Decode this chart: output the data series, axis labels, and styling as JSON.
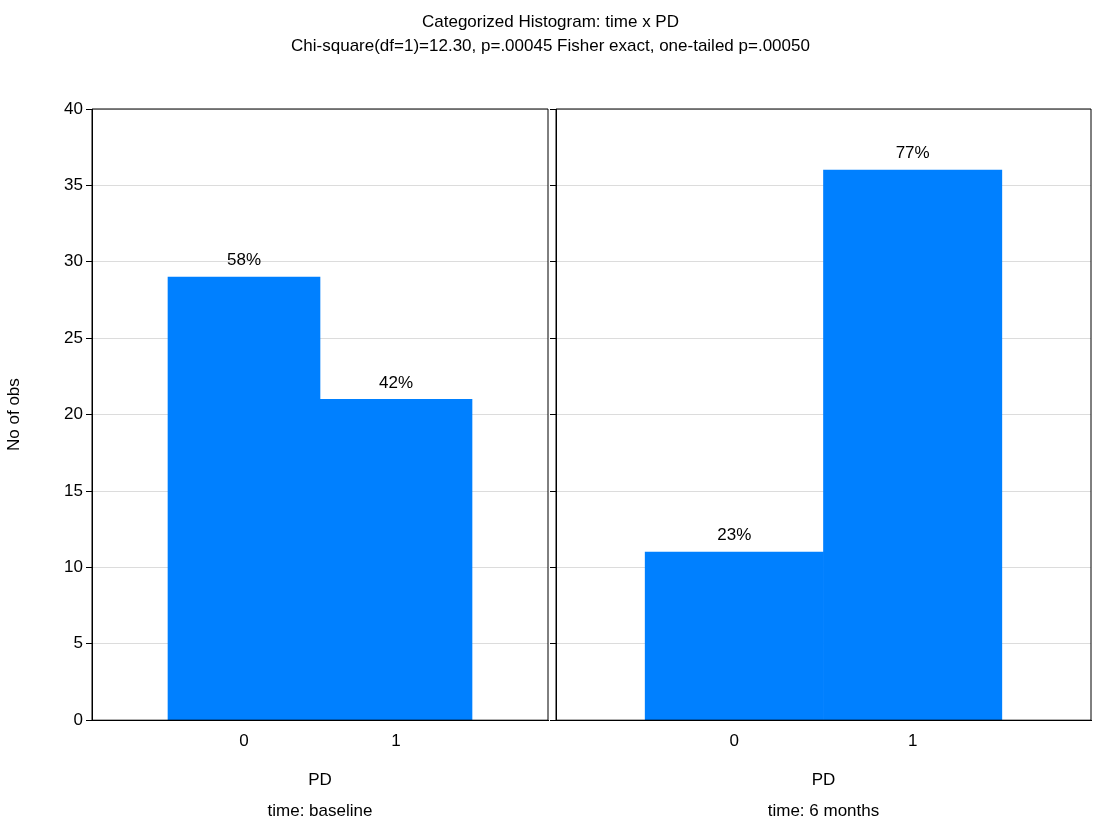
{
  "chart_data": [
    {
      "type": "bar",
      "title": "Categorized Histogram: time x PD",
      "subtitle": "Chi-square(df=1)=12.30, p=.00045 Fisher exact, one-tailed p=.00050",
      "categories": [
        "0",
        "1"
      ],
      "values": [
        29,
        21
      ],
      "color": "#0080ff",
      "xlabel": "PD",
      "ylabel": "No of obs",
      "annotations": [
        {
          "text": "58%",
          "x": "0",
          "y": 29
        },
        {
          "text": "42%",
          "x": "1",
          "y": 21
        },
        "time: baseline"
      ],
      "ylim": [
        0,
        40
      ],
      "yticks": [
        0,
        5,
        10,
        15,
        20,
        25,
        30,
        35,
        40
      ],
      "grid": "y"
    },
    {
      "type": "bar",
      "categories": [
        "0",
        "1"
      ],
      "values": [
        11,
        36
      ],
      "color": "#0080ff",
      "xlabel": "PD",
      "annotations": [
        {
          "text": "23%",
          "x": "0",
          "y": 11
        },
        {
          "text": "77%",
          "x": "1",
          "y": 36
        },
        "time: 6 months"
      ],
      "ylim": [
        0,
        40
      ],
      "yticks": [
        0,
        5,
        10,
        15,
        20,
        25,
        30,
        35,
        40
      ],
      "grid": "y",
      "tick_labels": "x"
    }
  ]
}
